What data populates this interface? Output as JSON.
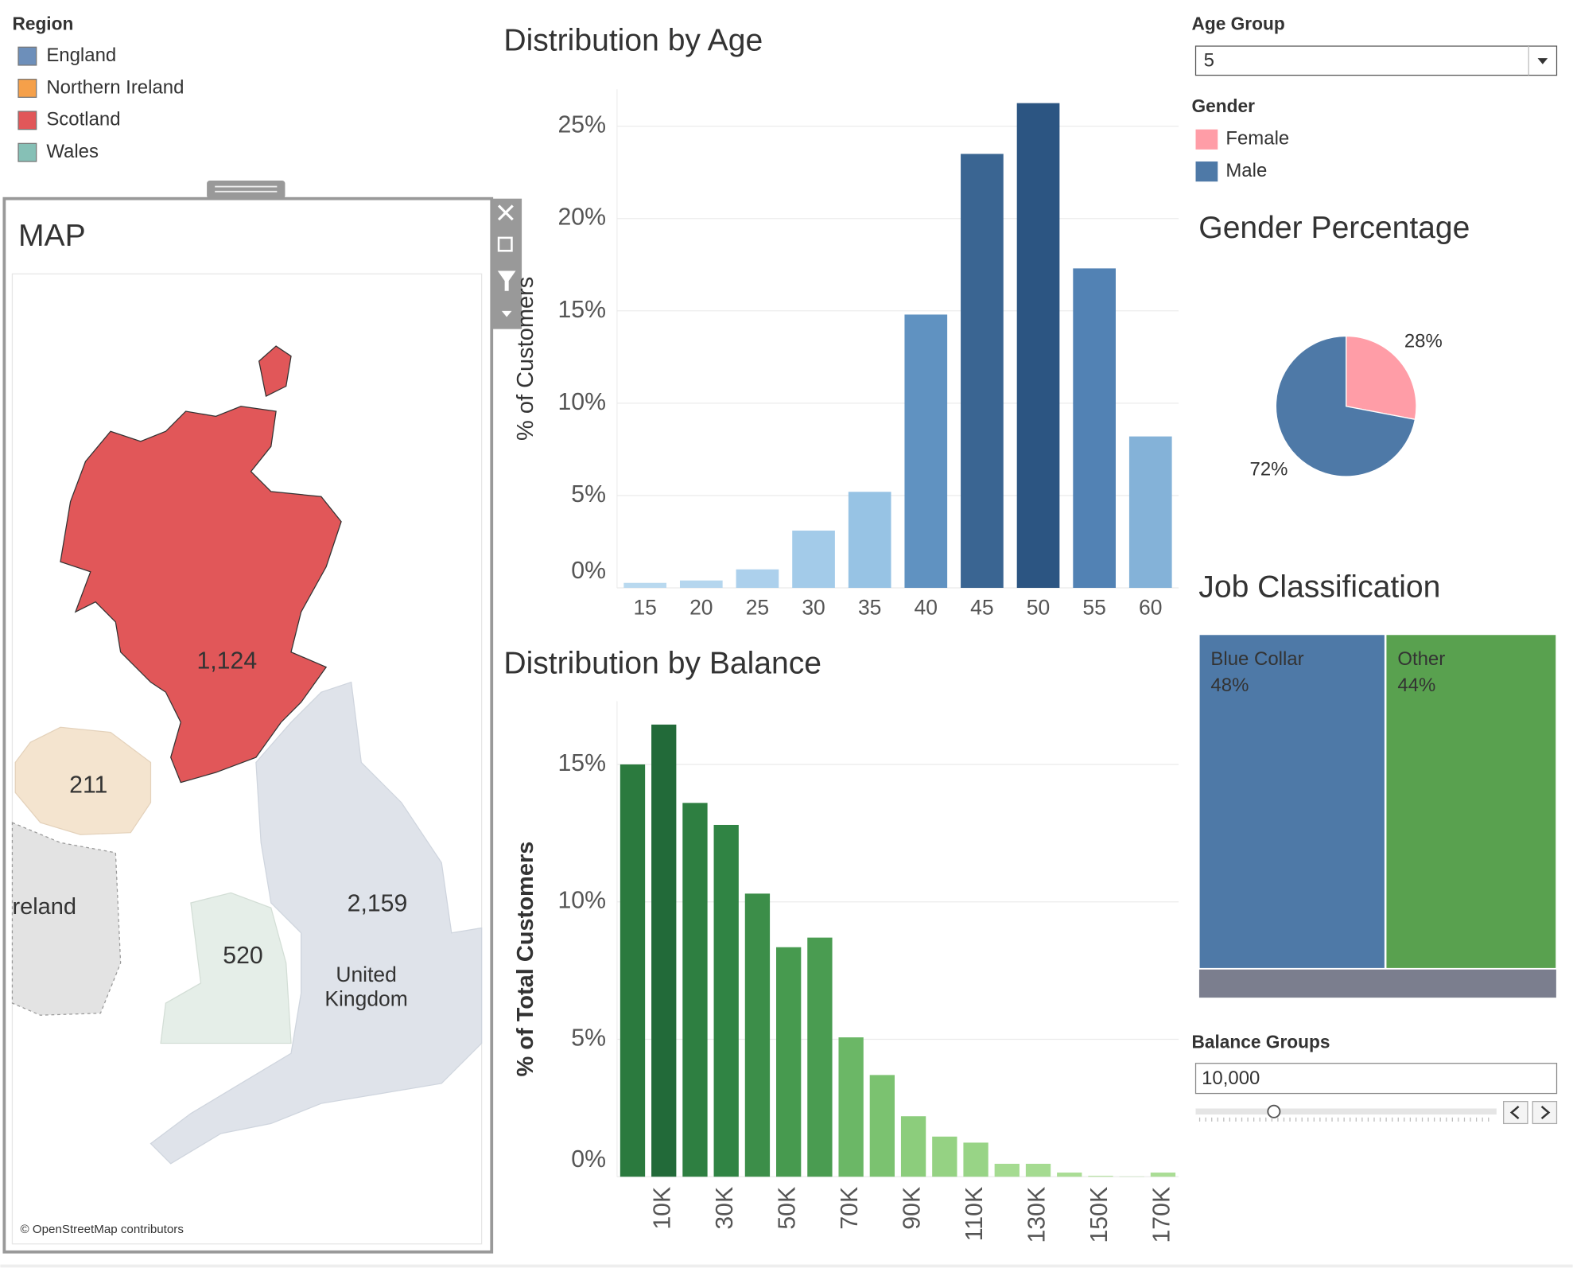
{
  "region_legend": {
    "title": "Region",
    "items": [
      {
        "label": "England",
        "color": "#6d8fba"
      },
      {
        "label": "Northern Ireland",
        "color": "#f5a04a"
      },
      {
        "label": "Scotland",
        "color": "#e15759"
      },
      {
        "label": "Wales",
        "color": "#86c0b6"
      }
    ]
  },
  "map": {
    "title": "MAP",
    "labels": [
      "1,124",
      "211",
      "2,159",
      "520"
    ],
    "places": [
      "reland",
      "United",
      "Kingdom"
    ],
    "attribution": "© OpenStreetMap contributors"
  },
  "age_group_filter": {
    "title": "Age Group",
    "value": "5"
  },
  "balance_groups_filter": {
    "title": "Balance Groups",
    "value": "10,000"
  },
  "chart_data": [
    {
      "type": "bar",
      "title": "Distribution by Age",
      "y_label": "% of Customers",
      "categories": [
        "15",
        "20",
        "25",
        "30",
        "35",
        "40",
        "45",
        "50",
        "55",
        "60"
      ],
      "values": [
        0.27,
        0.4,
        1.0,
        3.1,
        5.2,
        14.8,
        23.5,
        26.25,
        17.3,
        8.2
      ],
      "colors": [
        "#b9d9ef",
        "#b5d6ee",
        "#acd0ec",
        "#a3cbe9",
        "#97c3e4",
        "#6092c1",
        "#3a6592",
        "#2c5582",
        "#5282b4",
        "#84b2d8"
      ],
      "ylim": [
        0,
        27
      ],
      "yticks": [
        {
          "value": 0,
          "label": "0%"
        },
        {
          "value": 5,
          "label": "5%"
        },
        {
          "value": 10,
          "label": "10%"
        },
        {
          "value": 15,
          "label": "15%"
        },
        {
          "value": 20,
          "label": "20%"
        },
        {
          "value": 25,
          "label": "25%"
        }
      ],
      "grid": true
    },
    {
      "type": "bar",
      "title": "Distribution by Balance",
      "y_label": "% of Total Customers",
      "categories": [
        null,
        "10K",
        null,
        "30K",
        null,
        "50K",
        null,
        "70K",
        null,
        "90K",
        null,
        "110K",
        null,
        "130K",
        null,
        "150K",
        null,
        "170K"
      ],
      "values": [
        15.0,
        16.45,
        13.6,
        12.8,
        10.3,
        8.35,
        8.7,
        5.07,
        3.7,
        2.2,
        1.46,
        1.24,
        0.47,
        0.47,
        0.15,
        0.03,
        0.01,
        0.15
      ],
      "colors": [
        "#2b7a3e",
        "#226a39",
        "#2e7f41",
        "#308444",
        "#3c8e49",
        "#479a4f",
        "#4a9c51",
        "#6bb766",
        "#7bc270",
        "#8ccd7c",
        "#95d283",
        "#98d486",
        "#a5db91",
        "#a5db91",
        "#aadd95",
        "#aadd95",
        "#aadd95",
        "#aadd95"
      ],
      "ylim": [
        0,
        17.3
      ],
      "yticks": [
        {
          "value": 0,
          "label": "0%"
        },
        {
          "value": 5,
          "label": "5%"
        },
        {
          "value": 10,
          "label": "10%"
        },
        {
          "value": 15,
          "label": "15%"
        }
      ],
      "grid": true
    },
    {
      "type": "pie",
      "title": "Gender Percentage",
      "legend_title": "Gender",
      "categories": [
        "Female",
        "Male"
      ],
      "values": [
        28,
        72
      ],
      "value_labels": [
        "28%",
        "72%"
      ],
      "colors": [
        "#ff9da7",
        "#4e79a7"
      ]
    },
    {
      "type": "treemap",
      "title": "Job Classification",
      "categories": [
        "Blue Collar",
        "Other",
        null
      ],
      "values": [
        48,
        44,
        8
      ],
      "value_labels": [
        "48%",
        "44%",
        null
      ],
      "colors": [
        "#4e79a7",
        "#59a14f",
        "#7b7e8e"
      ]
    }
  ]
}
